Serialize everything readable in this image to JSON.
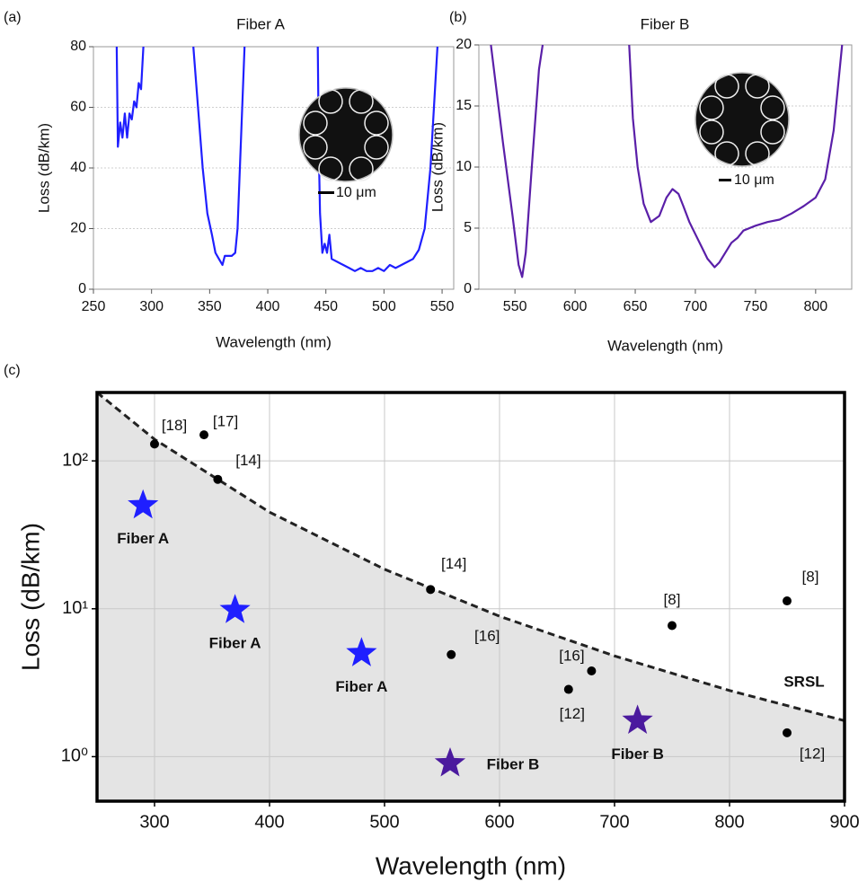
{
  "chart_data": [
    {
      "type": "line",
      "panel_label": "(a)",
      "title": "Fiber A",
      "x_label": "Wavelength (nm)",
      "y_label": "Loss (dB/km)",
      "xlim": [
        250,
        560
      ],
      "xticks": [
        250,
        300,
        350,
        400,
        450,
        500,
        550
      ],
      "ylim": [
        0,
        80
      ],
      "yticks": [
        0,
        20,
        40,
        60,
        80
      ],
      "grid": true,
      "inset_label": "10 μm",
      "series": [
        {
          "color": "#1f1fff",
          "x": [
            270,
            271,
            273,
            275,
            277,
            279,
            281,
            283,
            285,
            287,
            289,
            291,
            293,
            null,
            336,
            340,
            344,
            348,
            352,
            355,
            358,
            361,
            363,
            366,
            369,
            372,
            374,
            376,
            378,
            380,
            null,
            443,
            444,
            445,
            447,
            449,
            451,
            453,
            455,
            460,
            465,
            470,
            475,
            480,
            485,
            490,
            495,
            500,
            505,
            510,
            515,
            520,
            525,
            530,
            535,
            540,
            543,
            546
          ],
          "values": [
            80,
            47,
            55,
            50,
            58,
            50,
            58,
            56,
            62,
            60,
            68,
            66,
            80,
            null,
            80,
            60,
            40,
            25,
            18,
            12,
            10,
            8,
            11,
            11,
            11,
            12,
            20,
            40,
            60,
            80,
            null,
            80,
            45,
            25,
            12,
            15,
            12,
            18,
            10,
            9,
            8,
            7,
            6,
            7,
            6,
            6,
            7,
            6,
            8,
            7,
            8,
            9,
            10,
            13,
            20,
            40,
            60,
            80
          ]
        }
      ]
    },
    {
      "type": "line",
      "panel_label": "(b)",
      "title": "Fiber B",
      "x_label": "Wavelength (nm)",
      "y_label": "Loss (dB/km)",
      "xlim": [
        520,
        830
      ],
      "xticks": [
        550,
        600,
        650,
        700,
        750,
        800
      ],
      "ylim": [
        0,
        20
      ],
      "yticks": [
        0,
        5,
        10,
        15,
        20
      ],
      "grid": true,
      "inset_label": "10 μm",
      "series": [
        {
          "color": "#5a1fa8",
          "x": [
            530,
            540,
            548,
            553,
            556,
            559,
            564,
            570,
            573,
            null,
            645,
            648,
            652,
            657,
            663,
            670,
            676,
            681,
            686,
            690,
            695,
            700,
            705,
            710,
            716,
            720,
            725,
            730,
            735,
            740,
            750,
            760,
            770,
            780,
            790,
            800,
            808,
            815,
            822
          ],
          "values": [
            20,
            12,
            6,
            2,
            1,
            3,
            10,
            18,
            20,
            null,
            20,
            14,
            10,
            7,
            5.5,
            6,
            7.5,
            8.2,
            7.8,
            6.8,
            5.5,
            4.5,
            3.5,
            2.5,
            1.8,
            2.2,
            3,
            3.8,
            4.2,
            4.8,
            5.2,
            5.5,
            5.7,
            6.2,
            6.8,
            7.5,
            9,
            13,
            20
          ]
        }
      ]
    },
    {
      "type": "scatter",
      "panel_label": "(c)",
      "x_label": "Wavelength (nm)",
      "y_label": "Loss (dB/km)",
      "xlim": [
        250,
        900
      ],
      "xticks": [
        300,
        400,
        500,
        600,
        700,
        800,
        900
      ],
      "ylim": [
        0.5,
        290
      ],
      "yticks": [
        {
          "value": 1,
          "label": "10⁰"
        },
        {
          "value": 10,
          "label": "10¹"
        },
        {
          "value": 100,
          "label": "10²"
        }
      ],
      "log_y": true,
      "grid": true,
      "series": [
        {
          "marker": "dashed-line",
          "label": "SRSL",
          "color": "#222222",
          "fill": "#e4e4e4",
          "x": [
            250,
            300,
            400,
            500,
            600,
            700,
            800,
            900
          ],
          "values": [
            290,
            140,
            45,
            18.5,
            8.9,
            4.8,
            2.8,
            1.75
          ]
        },
        {
          "marker": "circle",
          "color": "#000000",
          "x": [
            300,
            343,
            355,
            540,
            558,
            660,
            680,
            750,
            850,
            850
          ],
          "values": [
            130,
            150,
            75,
            13.5,
            4.9,
            2.85,
            3.8,
            7.7,
            11.3,
            1.45
          ],
          "labels": [
            "[18]",
            "[17]",
            "[14]",
            "[14]",
            "[16]",
            "[12]",
            "[16]",
            "[8]",
            "[8]",
            "[12]"
          ]
        },
        {
          "marker": "star",
          "color": "#1f1fff",
          "x": [
            290,
            370,
            480
          ],
          "values": [
            50,
            9.8,
            5
          ],
          "labels": [
            "Fiber A",
            "Fiber A",
            "Fiber A"
          ]
        },
        {
          "marker": "star",
          "color": "#4b1a9e",
          "x": [
            557,
            720
          ],
          "values": [
            0.9,
            1.75
          ],
          "labels": [
            "Fiber B",
            "Fiber B"
          ]
        }
      ]
    }
  ]
}
